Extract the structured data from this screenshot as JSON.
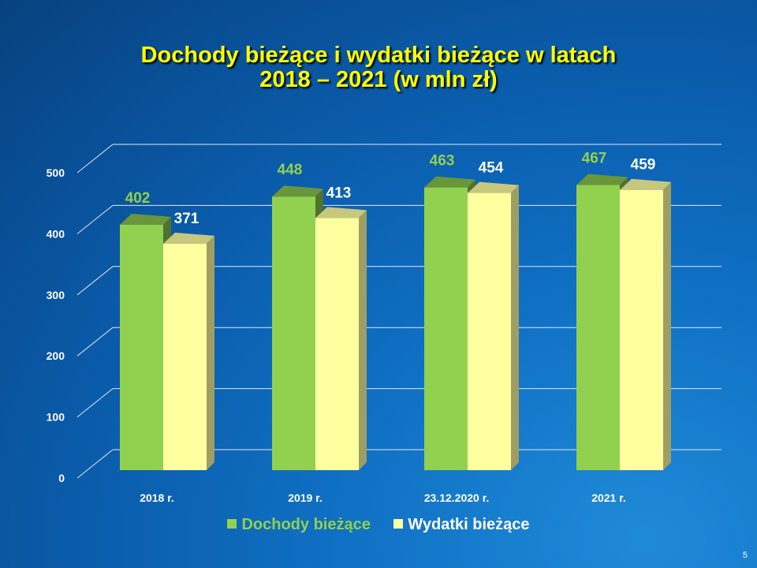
{
  "slide": {
    "title_line1": "Dochody bieżące i wydatki bieżące w latach",
    "title_line2": "2018 – 2021 (w mln zł)",
    "page_number": "5"
  },
  "chart_data": {
    "type": "bar",
    "categories": [
      "2018 r.",
      "2019 r.",
      "23.12.2020 r.",
      "2021 r."
    ],
    "series": [
      {
        "name": "Dochody bieżące",
        "values": [
          402,
          448,
          463,
          467
        ],
        "color": "#92d050",
        "label_color": "#92d050"
      },
      {
        "name": "Wydatki bieżące",
        "values": [
          371,
          413,
          454,
          459
        ],
        "color": "#ffffa0",
        "label_color": "#ffffff"
      }
    ],
    "yticks": [
      0,
      100,
      200,
      300,
      400,
      500
    ],
    "ylim": [
      0,
      500
    ],
    "grid": true,
    "legend_position": "bottom",
    "style": "3d-clustered-column"
  }
}
